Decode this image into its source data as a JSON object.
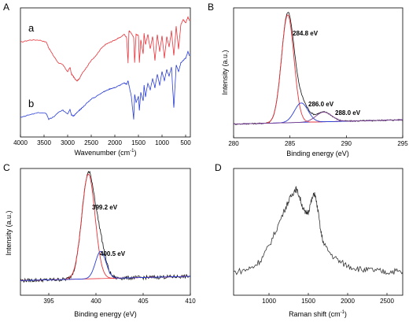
{
  "chart_data": [
    {
      "panel": "A",
      "type": "line",
      "xlabel": "Wavenumber (cm",
      "xlabel_sup": "-1",
      "xlabel_close": ")",
      "ylabel": "",
      "xlim": [
        4000,
        400
      ],
      "xticks": [
        4000,
        3500,
        3000,
        2500,
        2000,
        1500,
        1000,
        500
      ],
      "series": [
        {
          "name": "a",
          "color": "#e8333a",
          "x": [
            4000,
            3800,
            3600,
            3450,
            3400,
            3300,
            3200,
            3100,
            3000,
            2950,
            2920,
            2880,
            2850,
            2800,
            2750,
            2700,
            2600,
            2500,
            2400,
            2300,
            2200,
            2100,
            2000,
            1900,
            1800,
            1750,
            1720,
            1700,
            1650,
            1600,
            1580,
            1550,
            1500,
            1480,
            1450,
            1400,
            1380,
            1350,
            1300,
            1250,
            1200,
            1150,
            1100,
            1050,
            1000,
            950,
            900,
            850,
            800,
            750,
            700,
            650,
            600,
            550,
            500,
            450,
            420
          ],
          "y": [
            0.78,
            0.8,
            0.8,
            0.78,
            0.73,
            0.66,
            0.6,
            0.58,
            0.52,
            0.56,
            0.5,
            0.48,
            0.46,
            0.44,
            0.46,
            0.5,
            0.56,
            0.62,
            0.66,
            0.72,
            0.76,
            0.78,
            0.8,
            0.82,
            0.85,
            0.82,
            0.6,
            0.88,
            0.86,
            0.82,
            0.6,
            0.85,
            0.84,
            0.6,
            0.8,
            0.68,
            0.86,
            0.76,
            0.85,
            0.72,
            0.83,
            0.62,
            0.85,
            0.7,
            0.84,
            0.64,
            0.83,
            0.74,
            0.88,
            0.66,
            0.92,
            0.72,
            0.94,
            0.98,
            0.95,
            1.0,
            0.97
          ]
        },
        {
          "name": "b",
          "color": "#2a3ed6",
          "x": [
            4000,
            3800,
            3600,
            3450,
            3400,
            3300,
            3200,
            3100,
            3000,
            2950,
            2920,
            2880,
            2850,
            2800,
            2750,
            2700,
            2600,
            2500,
            2400,
            2300,
            2200,
            2100,
            2000,
            1900,
            1800,
            1750,
            1720,
            1700,
            1650,
            1600,
            1580,
            1550,
            1500,
            1480,
            1450,
            1400,
            1380,
            1350,
            1300,
            1250,
            1200,
            1150,
            1100,
            1050,
            1000,
            950,
            900,
            850,
            800,
            750,
            700,
            650,
            600,
            550,
            500,
            450,
            420
          ],
          "y": [
            0.12,
            0.14,
            0.16,
            0.15,
            0.1,
            0.12,
            0.16,
            0.18,
            0.15,
            0.19,
            0.14,
            0.13,
            0.14,
            0.16,
            0.18,
            0.2,
            0.24,
            0.28,
            0.3,
            0.33,
            0.35,
            0.37,
            0.38,
            0.4,
            0.42,
            0.41,
            0.44,
            0.4,
            0.3,
            0.1,
            0.32,
            0.25,
            0.3,
            0.18,
            0.34,
            0.26,
            0.4,
            0.3,
            0.42,
            0.36,
            0.46,
            0.38,
            0.5,
            0.4,
            0.52,
            0.44,
            0.54,
            0.48,
            0.56,
            0.2,
            0.58,
            0.52,
            0.6,
            0.62,
            0.64,
            0.7,
            0.66
          ]
        }
      ],
      "curve_labels": [
        "a",
        "b"
      ]
    },
    {
      "panel": "B",
      "type": "line",
      "xlabel": "Binding energy (eV)",
      "ylabel": "Intensity (a.u.)",
      "xlim": [
        280,
        295
      ],
      "xticks": [
        280,
        285,
        290,
        295
      ],
      "annotations": [
        "284.8 eV",
        "286.0 eV",
        "288.0 eV"
      ],
      "peaks": [
        {
          "center": 284.8,
          "height": 1.0,
          "sigma": 0.55,
          "color": "#e8333a"
        },
        {
          "center": 286.0,
          "height": 0.18,
          "sigma": 0.6,
          "color": "#2a3ed6"
        },
        {
          "center": 288.0,
          "height": 0.09,
          "sigma": 0.7,
          "color": "#7a3f8f"
        }
      ],
      "baseline": {
        "x": [
          280,
          295
        ],
        "y": [
          0.01,
          0.05
        ],
        "color": "#2a3ed6"
      }
    },
    {
      "panel": "C",
      "type": "line",
      "xlabel": "Binding energy (eV)",
      "ylabel": "Intensity (a.u.)",
      "xlim": [
        392,
        410
      ],
      "xticks": [
        395,
        400,
        405,
        410
      ],
      "annotations": [
        "399.2 eV",
        "400.5 eV"
      ],
      "peaks": [
        {
          "center": 399.2,
          "height": 1.0,
          "sigma": 0.7,
          "color": "#e8333a"
        },
        {
          "center": 400.5,
          "height": 0.26,
          "sigma": 0.55,
          "color": "#2a3ed6"
        }
      ],
      "baseline": {
        "x": [
          392,
          410
        ],
        "y": [
          0.02,
          0.06
        ],
        "color": "#e8333a"
      }
    },
    {
      "panel": "D",
      "type": "line",
      "xlabel": "Raman shift (cm",
      "xlabel_sup": "-1",
      "xlabel_close": ")",
      "ylabel": "",
      "xlim": [
        550,
        2700
      ],
      "xticks": [
        1000,
        1500,
        2000,
        2500
      ],
      "series": [
        {
          "name": "",
          "color": "#333333",
          "x": [
            550,
            700,
            800,
            900,
            1000,
            1100,
            1200,
            1250,
            1300,
            1340,
            1380,
            1420,
            1460,
            1500,
            1540,
            1580,
            1620,
            1660,
            1700,
            1800,
            1900,
            2000,
            2100,
            2200,
            2300,
            2400,
            2500,
            2600,
            2700
          ],
          "y": [
            0.1,
            0.12,
            0.15,
            0.22,
            0.35,
            0.52,
            0.7,
            0.78,
            0.85,
            0.9,
            0.84,
            0.74,
            0.66,
            0.68,
            0.78,
            0.86,
            0.7,
            0.48,
            0.36,
            0.26,
            0.2,
            0.16,
            0.14,
            0.12,
            0.12,
            0.11,
            0.1,
            0.11,
            0.1
          ]
        }
      ]
    }
  ]
}
